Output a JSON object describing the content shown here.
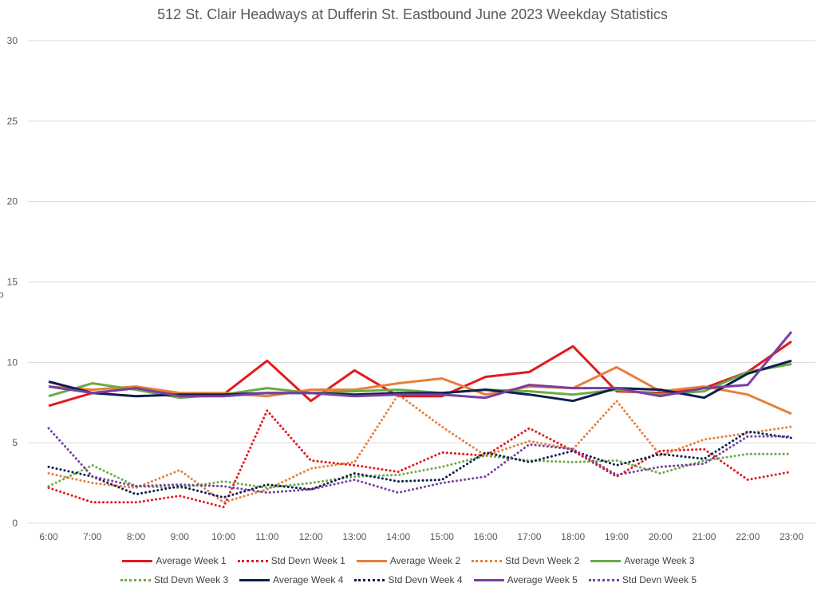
{
  "chart_data": {
    "type": "line",
    "title": "512 St. Clair Headways at Dufferin St. Eastbound June 2023 Weekday Statistics",
    "y_label_fragment": "o",
    "xlabel": "",
    "ylabel": "",
    "ylim": [
      0,
      30
    ],
    "yticks": [
      0,
      5,
      10,
      15,
      20,
      25,
      30
    ],
    "grid": true,
    "legend_position": "bottom",
    "categories": [
      "6:00",
      "7:00",
      "8:00",
      "9:00",
      "10:00",
      "11:00",
      "12:00",
      "13:00",
      "14:00",
      "15:00",
      "16:00",
      "17:00",
      "18:00",
      "19:00",
      "20:00",
      "21:00",
      "22:00",
      "23:00"
    ],
    "series": [
      {
        "name": "Average Week 1",
        "color": "#e31a1c",
        "dash": "solid",
        "values": [
          7.3,
          8.1,
          8.4,
          8.0,
          8.0,
          10.1,
          7.6,
          9.5,
          7.9,
          7.9,
          9.1,
          9.4,
          11.0,
          8.2,
          8.1,
          8.4,
          9.4,
          11.3
        ]
      },
      {
        "name": "Std Devn Week 1",
        "color": "#e31a1c",
        "dash": "dotted",
        "values": [
          2.2,
          1.3,
          1.3,
          1.7,
          1.0,
          7.0,
          3.9,
          3.6,
          3.2,
          4.4,
          4.2,
          5.9,
          4.5,
          2.9,
          4.5,
          4.6,
          2.7,
          3.2
        ]
      },
      {
        "name": "Average Week 2",
        "color": "#e6803a",
        "dash": "solid",
        "values": [
          8.5,
          8.3,
          8.5,
          8.1,
          8.1,
          7.9,
          8.3,
          8.3,
          8.7,
          9.0,
          8.0,
          8.5,
          8.4,
          9.7,
          8.2,
          8.5,
          8.0,
          6.8
        ]
      },
      {
        "name": "Std Devn Week 2",
        "color": "#e6803a",
        "dash": "dotted",
        "values": [
          3.1,
          2.5,
          2.2,
          3.3,
          1.3,
          2.1,
          3.4,
          3.8,
          8.0,
          6.0,
          4.2,
          5.1,
          4.6,
          7.6,
          4.2,
          5.2,
          5.6,
          6.0
        ]
      },
      {
        "name": "Average Week 3",
        "color": "#6aab46",
        "dash": "solid",
        "values": [
          7.9,
          8.7,
          8.3,
          7.8,
          8.0,
          8.4,
          8.1,
          8.2,
          8.3,
          8.1,
          8.3,
          8.2,
          8.0,
          8.3,
          8.0,
          8.2,
          9.4,
          9.9
        ]
      },
      {
        "name": "Std Devn Week 3",
        "color": "#6aab46",
        "dash": "dotted",
        "values": [
          2.3,
          3.6,
          2.3,
          2.2,
          2.6,
          2.2,
          2.5,
          2.9,
          3.0,
          3.5,
          4.2,
          3.9,
          3.8,
          3.9,
          3.1,
          3.9,
          4.3,
          4.3
        ]
      },
      {
        "name": "Average Week 4",
        "color": "#0d1f4f",
        "dash": "solid",
        "values": [
          8.8,
          8.1,
          7.9,
          8.0,
          8.0,
          8.1,
          8.1,
          8.0,
          8.1,
          8.1,
          8.3,
          8.0,
          7.6,
          8.4,
          8.3,
          7.8,
          9.3,
          10.1
        ]
      },
      {
        "name": "Std Devn Week 4",
        "color": "#0d1f4f",
        "dash": "dotted",
        "values": [
          3.5,
          2.9,
          1.8,
          2.3,
          1.6,
          2.4,
          2.1,
          3.1,
          2.6,
          2.7,
          4.4,
          3.8,
          4.5,
          3.6,
          4.3,
          4.0,
          5.7,
          5.3
        ]
      },
      {
        "name": "Average Week 5",
        "color": "#7a3fa0",
        "dash": "solid",
        "values": [
          8.5,
          8.1,
          8.4,
          7.9,
          7.9,
          8.1,
          8.1,
          7.9,
          8.0,
          8.0,
          7.8,
          8.6,
          8.4,
          8.4,
          7.9,
          8.4,
          8.6,
          11.9
        ]
      },
      {
        "name": "Std Devn Week 5",
        "color": "#7a3fa0",
        "dash": "dotted",
        "values": [
          5.9,
          2.9,
          2.3,
          2.4,
          2.3,
          1.9,
          2.1,
          2.7,
          1.9,
          2.5,
          2.9,
          4.9,
          4.6,
          3.0,
          3.5,
          3.7,
          5.4,
          5.4
        ]
      }
    ]
  }
}
